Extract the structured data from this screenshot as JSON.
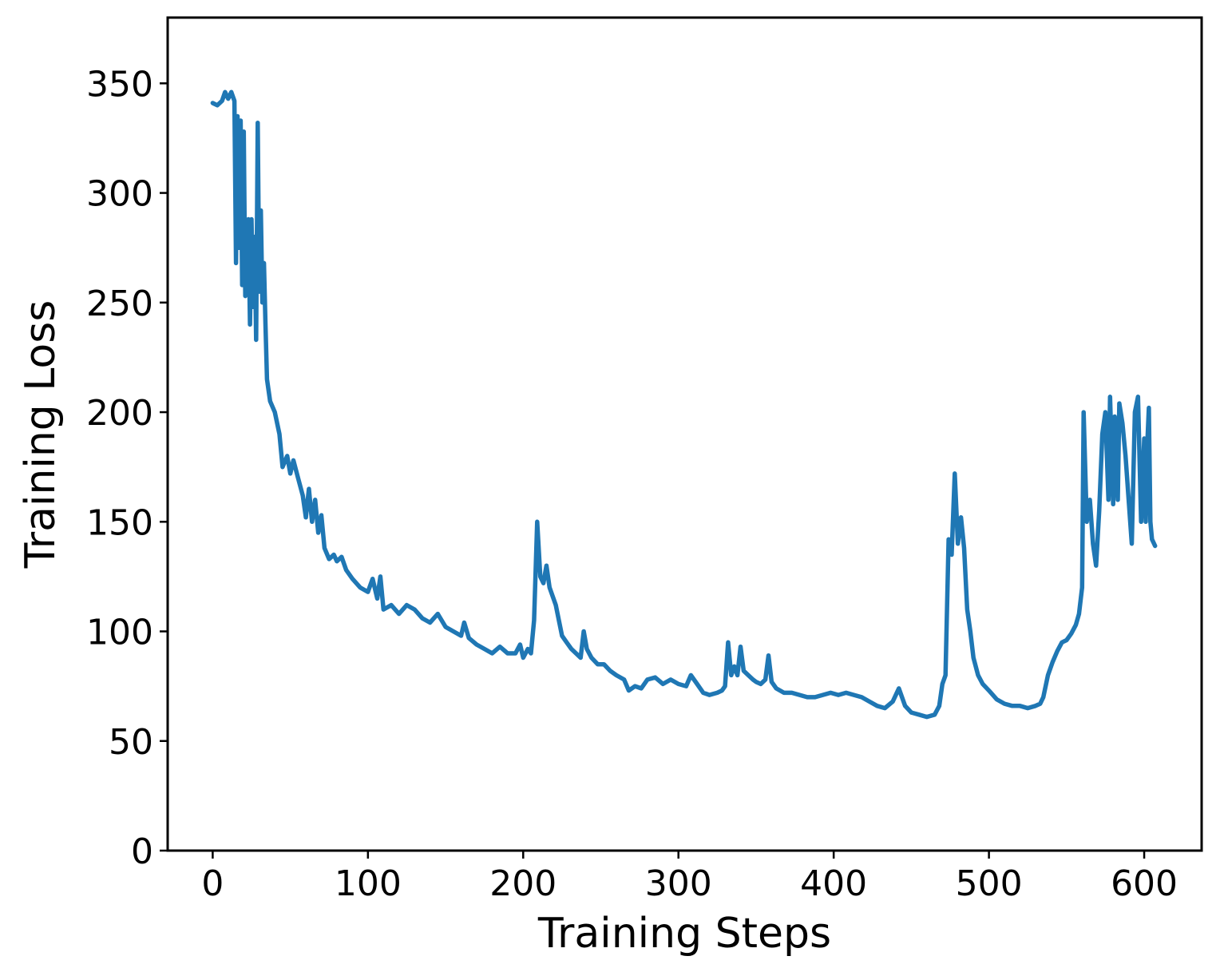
{
  "chart_data": {
    "type": "line",
    "title": "",
    "xlabel": "Training Steps",
    "ylabel": "Training Loss",
    "xlim": [
      -29,
      637
    ],
    "ylim": [
      0,
      380
    ],
    "xticks": [
      0,
      100,
      200,
      300,
      400,
      500,
      600
    ],
    "yticks": [
      0,
      50,
      100,
      150,
      200,
      250,
      300,
      350
    ],
    "grid": false,
    "legend": "none",
    "colors": {
      "line": "#1f77b4",
      "axes": "#000000"
    },
    "series": [
      {
        "values": [
          [
            0,
            341
          ],
          [
            3,
            340
          ],
          [
            6,
            342
          ],
          [
            8,
            346
          ],
          [
            10,
            343
          ],
          [
            12,
            346
          ],
          [
            14,
            342
          ],
          [
            15,
            268
          ],
          [
            16,
            335
          ],
          [
            17,
            275
          ],
          [
            18,
            333
          ],
          [
            19,
            258
          ],
          [
            20,
            328
          ],
          [
            21,
            253
          ],
          [
            22,
            270
          ],
          [
            23,
            288
          ],
          [
            24,
            240
          ],
          [
            25,
            288
          ],
          [
            26,
            248
          ],
          [
            27,
            280
          ],
          [
            28,
            233
          ],
          [
            29,
            332
          ],
          [
            30,
            255
          ],
          [
            31,
            292
          ],
          [
            32,
            250
          ],
          [
            33,
            268
          ],
          [
            34,
            240
          ],
          [
            35,
            215
          ],
          [
            37,
            205
          ],
          [
            40,
            200
          ],
          [
            43,
            190
          ],
          [
            45,
            175
          ],
          [
            48,
            180
          ],
          [
            50,
            172
          ],
          [
            52,
            178
          ],
          [
            55,
            170
          ],
          [
            58,
            162
          ],
          [
            60,
            152
          ],
          [
            62,
            165
          ],
          [
            64,
            150
          ],
          [
            66,
            160
          ],
          [
            68,
            145
          ],
          [
            70,
            153
          ],
          [
            72,
            138
          ],
          [
            75,
            133
          ],
          [
            78,
            135
          ],
          [
            80,
            132
          ],
          [
            83,
            134
          ],
          [
            86,
            128
          ],
          [
            90,
            124
          ],
          [
            95,
            120
          ],
          [
            100,
            118
          ],
          [
            103,
            124
          ],
          [
            106,
            115
          ],
          [
            108,
            125
          ],
          [
            110,
            110
          ],
          [
            115,
            112
          ],
          [
            120,
            108
          ],
          [
            125,
            112
          ],
          [
            130,
            110
          ],
          [
            135,
            106
          ],
          [
            140,
            104
          ],
          [
            145,
            108
          ],
          [
            150,
            102
          ],
          [
            155,
            100
          ],
          [
            160,
            98
          ],
          [
            162,
            104
          ],
          [
            165,
            97
          ],
          [
            170,
            94
          ],
          [
            175,
            92
          ],
          [
            180,
            90
          ],
          [
            185,
            93
          ],
          [
            190,
            90
          ],
          [
            195,
            90
          ],
          [
            198,
            94
          ],
          [
            200,
            88
          ],
          [
            203,
            92
          ],
          [
            205,
            90
          ],
          [
            207,
            105
          ],
          [
            209,
            150
          ],
          [
            211,
            125
          ],
          [
            213,
            122
          ],
          [
            215,
            130
          ],
          [
            217,
            120
          ],
          [
            219,
            116
          ],
          [
            221,
            112
          ],
          [
            223,
            105
          ],
          [
            225,
            98
          ],
          [
            228,
            95
          ],
          [
            231,
            92
          ],
          [
            234,
            90
          ],
          [
            237,
            88
          ],
          [
            239,
            100
          ],
          [
            241,
            92
          ],
          [
            244,
            88
          ],
          [
            248,
            85
          ],
          [
            252,
            85
          ],
          [
            256,
            82
          ],
          [
            260,
            80
          ],
          [
            265,
            78
          ],
          [
            268,
            73
          ],
          [
            272,
            75
          ],
          [
            276,
            74
          ],
          [
            280,
            78
          ],
          [
            285,
            79
          ],
          [
            290,
            76
          ],
          [
            295,
            78
          ],
          [
            300,
            76
          ],
          [
            305,
            75
          ],
          [
            308,
            80
          ],
          [
            312,
            76
          ],
          [
            316,
            72
          ],
          [
            320,
            71
          ],
          [
            325,
            72
          ],
          [
            328,
            73
          ],
          [
            330,
            75
          ],
          [
            332,
            95
          ],
          [
            334,
            80
          ],
          [
            336,
            84
          ],
          [
            338,
            80
          ],
          [
            340,
            93
          ],
          [
            342,
            82
          ],
          [
            345,
            80
          ],
          [
            348,
            78
          ],
          [
            350,
            77
          ],
          [
            353,
            76
          ],
          [
            356,
            78
          ],
          [
            358,
            89
          ],
          [
            360,
            77
          ],
          [
            363,
            74
          ],
          [
            368,
            72
          ],
          [
            373,
            72
          ],
          [
            378,
            71
          ],
          [
            383,
            70
          ],
          [
            388,
            70
          ],
          [
            393,
            71
          ],
          [
            398,
            72
          ],
          [
            403,
            71
          ],
          [
            408,
            72
          ],
          [
            413,
            71
          ],
          [
            418,
            70
          ],
          [
            423,
            68
          ],
          [
            428,
            66
          ],
          [
            433,
            65
          ],
          [
            438,
            68
          ],
          [
            442,
            74
          ],
          [
            446,
            66
          ],
          [
            450,
            63
          ],
          [
            455,
            62
          ],
          [
            460,
            61
          ],
          [
            465,
            62
          ],
          [
            468,
            66
          ],
          [
            470,
            76
          ],
          [
            472,
            80
          ],
          [
            474,
            142
          ],
          [
            476,
            135
          ],
          [
            478,
            172
          ],
          [
            480,
            140
          ],
          [
            482,
            152
          ],
          [
            484,
            138
          ],
          [
            486,
            110
          ],
          [
            488,
            100
          ],
          [
            490,
            88
          ],
          [
            493,
            80
          ],
          [
            496,
            76
          ],
          [
            500,
            73
          ],
          [
            505,
            69
          ],
          [
            510,
            67
          ],
          [
            515,
            66
          ],
          [
            520,
            66
          ],
          [
            525,
            65
          ],
          [
            530,
            66
          ],
          [
            533,
            67
          ],
          [
            535,
            70
          ],
          [
            538,
            80
          ],
          [
            541,
            86
          ],
          [
            544,
            91
          ],
          [
            547,
            95
          ],
          [
            550,
            96
          ],
          [
            553,
            99
          ],
          [
            556,
            103
          ],
          [
            558,
            108
          ],
          [
            560,
            120
          ],
          [
            561,
            200
          ],
          [
            563,
            150
          ],
          [
            565,
            160
          ],
          [
            567,
            140
          ],
          [
            569,
            130
          ],
          [
            571,
            155
          ],
          [
            573,
            190
          ],
          [
            575,
            200
          ],
          [
            577,
            160
          ],
          [
            578,
            207
          ],
          [
            580,
            158
          ],
          [
            581,
            198
          ],
          [
            583,
            160
          ],
          [
            584,
            204
          ],
          [
            586,
            195
          ],
          [
            588,
            180
          ],
          [
            590,
            160
          ],
          [
            592,
            140
          ],
          [
            594,
            200
          ],
          [
            596,
            207
          ],
          [
            598,
            150
          ],
          [
            600,
            188
          ],
          [
            601,
            150
          ],
          [
            602,
            185
          ],
          [
            603,
            202
          ],
          [
            604,
            150
          ],
          [
            605,
            142
          ],
          [
            607,
            139
          ]
        ]
      }
    ]
  }
}
